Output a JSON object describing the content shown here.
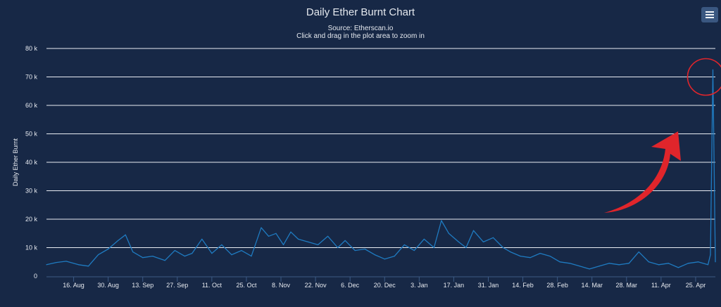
{
  "chart_data": {
    "type": "line",
    "title": "Daily Ether Burnt Chart",
    "subtitle": "Source: Etherscan.io",
    "subtitle2": "Click and drag in the plot area to zoom in",
    "ylabel": "Daily Ether Burnt",
    "xlabel": "",
    "ylim": [
      0,
      80000
    ],
    "xlim": [
      "2021-08-05",
      "2022-05-03"
    ],
    "grid": true,
    "ytick_labels": [
      "0",
      "10 k",
      "20 k",
      "30 k",
      "40 k",
      "50 k",
      "60 k",
      "70 k",
      "80 k"
    ],
    "xtick_labels": [
      "16. Aug",
      "30. Aug",
      "13. Sep",
      "27. Sep",
      "11. Oct",
      "25. Oct",
      "8. Nov",
      "22. Nov",
      "6. Dec",
      "20. Dec",
      "3. Jan",
      "17. Jan",
      "31. Jan",
      "14. Feb",
      "28. Feb",
      "14. Mar",
      "28. Mar",
      "11. Apr",
      "25. Apr"
    ],
    "xtick_dates": [
      "2021-08-16",
      "2021-08-30",
      "2021-09-13",
      "2021-09-27",
      "2021-10-11",
      "2021-10-25",
      "2021-11-08",
      "2021-11-22",
      "2021-12-06",
      "2021-12-20",
      "2022-01-03",
      "2022-01-17",
      "2022-01-31",
      "2022-02-14",
      "2022-02-28",
      "2022-03-14",
      "2022-03-28",
      "2022-04-11",
      "2022-04-25"
    ],
    "series": [
      {
        "color": "#1f7bc1",
        "points": [
          [
            "2021-08-05",
            4000
          ],
          [
            "2021-08-09",
            4800
          ],
          [
            "2021-08-13",
            5200
          ],
          [
            "2021-08-18",
            4000
          ],
          [
            "2021-08-22",
            3500
          ],
          [
            "2021-08-26",
            7500
          ],
          [
            "2021-08-30",
            9500
          ],
          [
            "2021-09-03",
            12500
          ],
          [
            "2021-09-06",
            14500
          ],
          [
            "2021-09-09",
            8500
          ],
          [
            "2021-09-13",
            6500
          ],
          [
            "2021-09-17",
            7000
          ],
          [
            "2021-09-22",
            5500
          ],
          [
            "2021-09-26",
            9000
          ],
          [
            "2021-09-30",
            7000
          ],
          [
            "2021-10-03",
            8000
          ],
          [
            "2021-10-07",
            13000
          ],
          [
            "2021-10-11",
            8000
          ],
          [
            "2021-10-15",
            11000
          ],
          [
            "2021-10-19",
            7500
          ],
          [
            "2021-10-23",
            9000
          ],
          [
            "2021-10-27",
            7000
          ],
          [
            "2021-10-31",
            17000
          ],
          [
            "2021-11-03",
            14000
          ],
          [
            "2021-11-06",
            15000
          ],
          [
            "2021-11-09",
            11000
          ],
          [
            "2021-11-12",
            15500
          ],
          [
            "2021-11-15",
            13000
          ],
          [
            "2021-11-19",
            12000
          ],
          [
            "2021-11-23",
            11000
          ],
          [
            "2021-11-27",
            14000
          ],
          [
            "2021-12-01",
            10000
          ],
          [
            "2021-12-04",
            12500
          ],
          [
            "2021-12-08",
            9000
          ],
          [
            "2021-12-12",
            9500
          ],
          [
            "2021-12-16",
            7500
          ],
          [
            "2021-12-20",
            6000
          ],
          [
            "2021-12-24",
            7000
          ],
          [
            "2021-12-28",
            11000
          ],
          [
            "2022-01-01",
            9000
          ],
          [
            "2022-01-05",
            13000
          ],
          [
            "2022-01-09",
            10000
          ],
          [
            "2022-01-12",
            19500
          ],
          [
            "2022-01-15",
            15000
          ],
          [
            "2022-01-19",
            12000
          ],
          [
            "2022-01-22",
            10000
          ],
          [
            "2022-01-25",
            16000
          ],
          [
            "2022-01-29",
            12000
          ],
          [
            "2022-02-02",
            13500
          ],
          [
            "2022-02-06",
            10000
          ],
          [
            "2022-02-09",
            8500
          ],
          [
            "2022-02-13",
            7000
          ],
          [
            "2022-02-17",
            6500
          ],
          [
            "2022-02-21",
            8000
          ],
          [
            "2022-02-25",
            7000
          ],
          [
            "2022-03-01",
            5000
          ],
          [
            "2022-03-05",
            4500
          ],
          [
            "2022-03-09",
            3500
          ],
          [
            "2022-03-13",
            2500
          ],
          [
            "2022-03-17",
            3500
          ],
          [
            "2022-03-21",
            4500
          ],
          [
            "2022-03-25",
            4000
          ],
          [
            "2022-03-29",
            4500
          ],
          [
            "2022-04-02",
            8500
          ],
          [
            "2022-04-06",
            5000
          ],
          [
            "2022-04-10",
            4000
          ],
          [
            "2022-04-14",
            4500
          ],
          [
            "2022-04-18",
            3000
          ],
          [
            "2022-04-22",
            4500
          ],
          [
            "2022-04-26",
            5000
          ],
          [
            "2022-04-30",
            4000
          ],
          [
            "2022-05-01",
            7500
          ],
          [
            "2022-05-02",
            72500
          ],
          [
            "2022-05-03",
            5000
          ]
        ]
      }
    ],
    "annotations": [
      {
        "type": "circle",
        "color": "#e0252b",
        "x": "2022-05-02",
        "y": 70000
      },
      {
        "type": "arrow",
        "color": "#e0252b"
      }
    ]
  },
  "icons": {
    "menu": "hamburger-menu-icon"
  },
  "colors": {
    "background": "#172846",
    "grid": "#e9edf3",
    "series": "#1f7bc1",
    "annotation": "#e0252b",
    "menu_button": "#3a5780"
  }
}
